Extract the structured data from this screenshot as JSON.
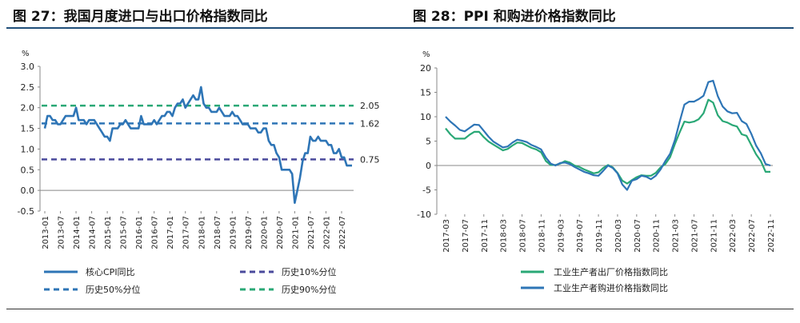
{
  "panels": {
    "left_title": "图 27：我国月度进口与出口价格指数同比",
    "right_title": "图 28：PPI 和购进价格指数同比"
  },
  "chart_data": [
    {
      "type": "line",
      "title": "图 27：我国月度进口与出口价格指数同比",
      "ylabel": "%",
      "ylim": [
        -0.5,
        3.0
      ],
      "yticks": [
        "3.0",
        "2.5",
        "2.0",
        "1.5",
        "1.0",
        "0.5",
        "0.0",
        "-0.5"
      ],
      "xticks": [
        "2013-01",
        "2013-07",
        "2014-01",
        "2014-07",
        "2015-01",
        "2015-07",
        "2016-01",
        "2016-07",
        "2017-01",
        "2017-07",
        "2018-01",
        "2018-07",
        "2019-01",
        "2019-07",
        "2020-01",
        "2020-07",
        "2021-01",
        "2021-07",
        "2022-01",
        "2022-07"
      ],
      "grid": false,
      "legend_position": "bottom",
      "series": [
        {
          "name": "核心CPI同比",
          "color": "#2e75b6",
          "style": "solid",
          "x": [
            "2013-01",
            "2013-02",
            "2013-03",
            "2013-04",
            "2013-05",
            "2013-06",
            "2013-07",
            "2013-08",
            "2013-09",
            "2013-10",
            "2013-11",
            "2013-12",
            "2014-01",
            "2014-02",
            "2014-03",
            "2014-04",
            "2014-05",
            "2014-06",
            "2014-07",
            "2014-08",
            "2014-09",
            "2014-10",
            "2014-11",
            "2014-12",
            "2015-01",
            "2015-02",
            "2015-03",
            "2015-04",
            "2015-05",
            "2015-06",
            "2015-07",
            "2015-08",
            "2015-09",
            "2015-10",
            "2015-11",
            "2015-12",
            "2016-01",
            "2016-02",
            "2016-03",
            "2016-04",
            "2016-05",
            "2016-06",
            "2016-07",
            "2016-08",
            "2016-09",
            "2016-10",
            "2016-11",
            "2016-12",
            "2017-01",
            "2017-02",
            "2017-03",
            "2017-04",
            "2017-05",
            "2017-06",
            "2017-07",
            "2017-08",
            "2017-09",
            "2017-10",
            "2017-11",
            "2017-12",
            "2018-01",
            "2018-02",
            "2018-03",
            "2018-04",
            "2018-05",
            "2018-06",
            "2018-07",
            "2018-08",
            "2018-09",
            "2018-10",
            "2018-11",
            "2018-12",
            "2019-01",
            "2019-02",
            "2019-03",
            "2019-04",
            "2019-05",
            "2019-06",
            "2019-07",
            "2019-08",
            "2019-09",
            "2019-10",
            "2019-11",
            "2019-12",
            "2020-01",
            "2020-02",
            "2020-03",
            "2020-04",
            "2020-05",
            "2020-06",
            "2020-07",
            "2020-08",
            "2020-09",
            "2020-10",
            "2020-11",
            "2020-12",
            "2021-01",
            "2021-02",
            "2021-03",
            "2021-04",
            "2021-05",
            "2021-06",
            "2021-07",
            "2021-08",
            "2021-09",
            "2021-10",
            "2021-11",
            "2021-12",
            "2022-01",
            "2022-02",
            "2022-03",
            "2022-04",
            "2022-05",
            "2022-06",
            "2022-07",
            "2022-08",
            "2022-09",
            "2022-10",
            "2022-11"
          ],
          "values": [
            1.5,
            1.8,
            1.8,
            1.7,
            1.7,
            1.6,
            1.6,
            1.7,
            1.8,
            1.8,
            1.8,
            1.8,
            2.0,
            1.7,
            1.7,
            1.7,
            1.6,
            1.7,
            1.7,
            1.7,
            1.6,
            1.5,
            1.4,
            1.3,
            1.3,
            1.2,
            1.5,
            1.5,
            1.5,
            1.6,
            1.6,
            1.7,
            1.6,
            1.5,
            1.5,
            1.5,
            1.5,
            1.8,
            1.6,
            1.6,
            1.6,
            1.6,
            1.7,
            1.6,
            1.7,
            1.8,
            1.8,
            1.9,
            1.9,
            1.8,
            2.0,
            2.1,
            2.1,
            2.2,
            2.0,
            2.1,
            2.2,
            2.3,
            2.2,
            2.2,
            2.5,
            2.1,
            2.0,
            2.0,
            1.9,
            1.9,
            1.9,
            2.0,
            1.9,
            1.8,
            1.8,
            1.8,
            1.9,
            1.8,
            1.8,
            1.7,
            1.6,
            1.6,
            1.6,
            1.5,
            1.5,
            1.5,
            1.4,
            1.4,
            1.5,
            1.5,
            1.2,
            1.1,
            1.1,
            0.9,
            0.8,
            0.5,
            0.5,
            0.5,
            0.5,
            0.4,
            -0.3,
            0.0,
            0.3,
            0.7,
            0.9,
            0.9,
            1.3,
            1.2,
            1.2,
            1.3,
            1.2,
            1.2,
            1.2,
            1.1,
            1.1,
            0.9,
            0.9,
            1.0,
            0.8,
            0.8,
            0.6,
            0.6,
            0.6
          ]
        },
        {
          "name": "历史10%分位",
          "color": "#4a4a9c",
          "style": "dashed",
          "value": 0.75,
          "label": "0.75"
        },
        {
          "name": "历史50%分位",
          "color": "#2e75b6",
          "style": "dashed",
          "value": 1.62,
          "label": "1.62"
        },
        {
          "name": "历史90%分位",
          "color": "#2aa876",
          "style": "dashed",
          "value": 2.05,
          "label": "2.05"
        }
      ]
    },
    {
      "type": "line",
      "title": "图 28：PPI 和购进价格指数同比",
      "ylabel": "%",
      "ylim": [
        -10,
        20
      ],
      "yticks": [
        "20",
        "15",
        "10",
        "5",
        "0",
        "-5",
        "-10"
      ],
      "xticks": [
        "2017-03",
        "2017-07",
        "2017-11",
        "2018-03",
        "2018-07",
        "2018-11",
        "2019-03",
        "2019-07",
        "2019-11",
        "2020-03",
        "2020-07",
        "2020-11",
        "2021-03",
        "2021-07",
        "2021-11",
        "2022-03",
        "2022-07",
        "2022-11"
      ],
      "grid": false,
      "legend_position": "bottom-left",
      "x": [
        "2017-03",
        "2017-04",
        "2017-05",
        "2017-06",
        "2017-07",
        "2017-08",
        "2017-09",
        "2017-10",
        "2017-11",
        "2017-12",
        "2018-01",
        "2018-02",
        "2018-03",
        "2018-04",
        "2018-05",
        "2018-06",
        "2018-07",
        "2018-08",
        "2018-09",
        "2018-10",
        "2018-11",
        "2018-12",
        "2019-01",
        "2019-02",
        "2019-03",
        "2019-04",
        "2019-05",
        "2019-06",
        "2019-07",
        "2019-08",
        "2019-09",
        "2019-10",
        "2019-11",
        "2019-12",
        "2020-01",
        "2020-02",
        "2020-03",
        "2020-04",
        "2020-05",
        "2020-06",
        "2020-07",
        "2020-08",
        "2020-09",
        "2020-10",
        "2020-11",
        "2020-12",
        "2021-01",
        "2021-02",
        "2021-03",
        "2021-04",
        "2021-05",
        "2021-06",
        "2021-07",
        "2021-08",
        "2021-09",
        "2021-10",
        "2021-11",
        "2021-12",
        "2022-01",
        "2022-02",
        "2022-03",
        "2022-04",
        "2022-05",
        "2022-06",
        "2022-07",
        "2022-08",
        "2022-09",
        "2022-10",
        "2022-11"
      ],
      "series": [
        {
          "name": "工业生产者出厂价格指数同比",
          "color": "#2aa876",
          "values": [
            7.6,
            6.4,
            5.5,
            5.5,
            5.5,
            6.3,
            6.9,
            6.9,
            5.8,
            4.9,
            4.3,
            3.7,
            3.1,
            3.4,
            4.1,
            4.7,
            4.6,
            4.1,
            3.6,
            3.3,
            2.7,
            0.9,
            0.1,
            0.1,
            0.4,
            0.9,
            0.6,
            0.0,
            -0.3,
            -0.8,
            -1.2,
            -1.6,
            -1.4,
            -0.5,
            0.1,
            -0.4,
            -1.5,
            -3.1,
            -3.7,
            -3.0,
            -2.4,
            -2.0,
            -2.1,
            -2.1,
            -1.5,
            -0.4,
            0.3,
            1.7,
            4.4,
            6.8,
            9.0,
            8.8,
            9.0,
            9.5,
            10.7,
            13.5,
            12.9,
            10.3,
            9.1,
            8.8,
            8.3,
            8.0,
            6.4,
            6.1,
            4.2,
            2.3,
            0.9,
            -1.3,
            -1.3
          ]
        },
        {
          "name": "工业生产者购进价格指数同比",
          "color": "#2e75b6",
          "values": [
            10.0,
            9.0,
            8.2,
            7.3,
            7.0,
            7.7,
            8.4,
            8.3,
            7.1,
            5.9,
            4.9,
            4.3,
            3.7,
            3.9,
            4.7,
            5.3,
            5.1,
            4.8,
            4.2,
            3.8,
            3.3,
            1.6,
            0.4,
            0.0,
            0.5,
            0.6,
            0.3,
            -0.3,
            -0.8,
            -1.3,
            -1.6,
            -2.0,
            -2.1,
            -1.1,
            0.0,
            -0.5,
            -1.6,
            -3.9,
            -5.0,
            -3.1,
            -2.8,
            -2.1,
            -2.3,
            -2.8,
            -2.1,
            -0.8,
            0.9,
            2.4,
            5.2,
            9.0,
            12.5,
            13.1,
            13.1,
            13.6,
            14.3,
            17.1,
            17.4,
            14.2,
            12.1,
            11.1,
            10.7,
            10.8,
            9.1,
            8.5,
            6.5,
            4.1,
            2.5,
            0.3,
            0.0
          ]
        }
      ]
    }
  ]
}
